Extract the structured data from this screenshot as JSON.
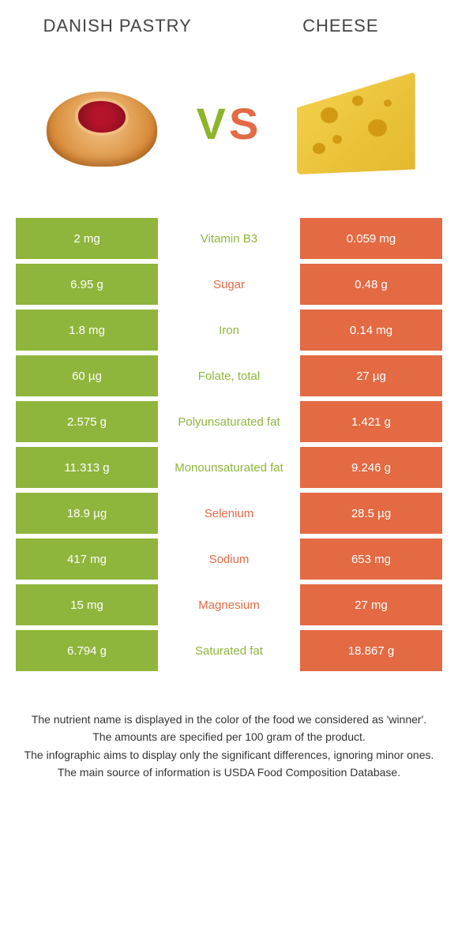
{
  "colors": {
    "left": "#8fb53c",
    "right": "#e36a43",
    "center_bg": "#ffffff",
    "vs_left": "#8eb42a",
    "vs_right": "#e36a43"
  },
  "foods": {
    "left": "DANISH PASTRY",
    "right": "CHEESE"
  },
  "vs": {
    "v": "V",
    "s": "S"
  },
  "rows": [
    {
      "left": "2 mg",
      "label": "Vitamin B3",
      "right": "0.059 mg",
      "winner": "left"
    },
    {
      "left": "6.95 g",
      "label": "Sugar",
      "right": "0.48 g",
      "winner": "right"
    },
    {
      "left": "1.8 mg",
      "label": "Iron",
      "right": "0.14 mg",
      "winner": "left"
    },
    {
      "left": "60 µg",
      "label": "Folate, total",
      "right": "27 µg",
      "winner": "left"
    },
    {
      "left": "2.575 g",
      "label": "Polyunsaturated fat",
      "right": "1.421 g",
      "winner": "left"
    },
    {
      "left": "11.313 g",
      "label": "Monounsaturated fat",
      "right": "9.246 g",
      "winner": "left"
    },
    {
      "left": "18.9 µg",
      "label": "Selenium",
      "right": "28.5 µg",
      "winner": "right"
    },
    {
      "left": "417 mg",
      "label": "Sodium",
      "right": "653 mg",
      "winner": "right"
    },
    {
      "left": "15 mg",
      "label": "Magnesium",
      "right": "27 mg",
      "winner": "right"
    },
    {
      "left": "6.794 g",
      "label": "Saturated fat",
      "right": "18.867 g",
      "winner": "left"
    }
  ],
  "footer": {
    "line1": "The nutrient name is displayed in the color of the food we considered as 'winner'.",
    "line2": "The amounts are specified per 100 gram of the product.",
    "line3": "The infographic aims to display only the significant differences, ignoring minor ones.",
    "line4": "The main source of information is USDA Food Composition Database."
  }
}
